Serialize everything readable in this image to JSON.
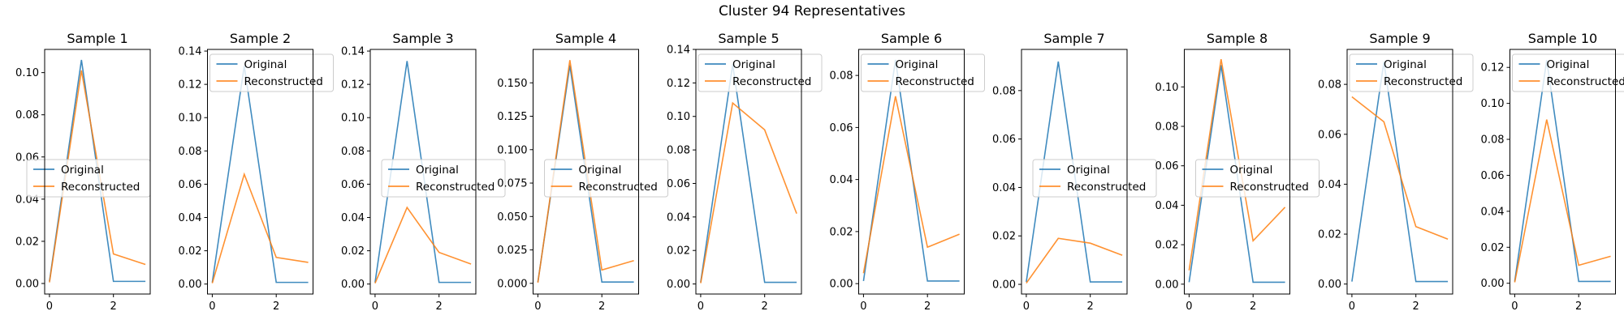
{
  "figure_title": "Cluster 94 Representatives",
  "colors": {
    "original": "#1f77b4",
    "reconstructed": "#ff7f0e"
  },
  "chart_data": [
    {
      "type": "line",
      "title": "Sample 1",
      "legend_position": "center-left",
      "x": [
        0,
        1,
        2,
        3
      ],
      "xlim": [
        -0.15,
        3.15
      ],
      "ylim": [
        -0.005,
        0.111
      ],
      "x_ticks": [
        0,
        2
      ],
      "x_tick_labels": [
        "0",
        "2"
      ],
      "y_ticks": [
        0,
        0.02,
        0.04,
        0.06,
        0.08,
        0.1
      ],
      "y_tick_labels": [
        "0.00",
        "0.02",
        "0.04",
        "0.06",
        "0.08",
        "0.10"
      ],
      "series": [
        {
          "name": "Original",
          "values": [
            0.001,
            0.106,
            0.001,
            0.001
          ]
        },
        {
          "name": "Reconstructed",
          "values": [
            0.0005,
            0.101,
            0.014,
            0.009
          ]
        }
      ]
    },
    {
      "type": "line",
      "title": "Sample 2",
      "legend_position": "top",
      "x": [
        0,
        1,
        2,
        3
      ],
      "xlim": [
        -0.15,
        3.15
      ],
      "ylim": [
        -0.006,
        0.141
      ],
      "x_ticks": [
        0,
        2
      ],
      "x_tick_labels": [
        "0",
        "2"
      ],
      "y_ticks": [
        0,
        0.02,
        0.04,
        0.06,
        0.08,
        0.1,
        0.12,
        0.14
      ],
      "y_tick_labels": [
        "0.00",
        "0.02",
        "0.04",
        "0.06",
        "0.08",
        "0.10",
        "0.12",
        "0.14"
      ],
      "series": [
        {
          "name": "Original",
          "values": [
            0.001,
            0.131,
            0.001,
            0.001
          ]
        },
        {
          "name": "Reconstructed",
          "values": [
            0.0005,
            0.066,
            0.016,
            0.013
          ]
        }
      ]
    },
    {
      "type": "line",
      "title": "Sample 3",
      "legend_position": "center",
      "x": [
        0,
        1,
        2,
        3
      ],
      "xlim": [
        -0.15,
        3.15
      ],
      "ylim": [
        -0.006,
        0.141
      ],
      "x_ticks": [
        0,
        2
      ],
      "x_tick_labels": [
        "0",
        "2"
      ],
      "y_ticks": [
        0,
        0.02,
        0.04,
        0.06,
        0.08,
        0.1,
        0.12,
        0.14
      ],
      "y_tick_labels": [
        "0.00",
        "0.02",
        "0.04",
        "0.06",
        "0.08",
        "0.10",
        "0.12",
        "0.14"
      ],
      "series": [
        {
          "name": "Original",
          "values": [
            0.001,
            0.134,
            0.001,
            0.001
          ]
        },
        {
          "name": "Reconstructed",
          "values": [
            0.0005,
            0.046,
            0.019,
            0.012
          ]
        }
      ]
    },
    {
      "type": "line",
      "title": "Sample 4",
      "legend_position": "center",
      "x": [
        0,
        1,
        2,
        3
      ],
      "xlim": [
        -0.15,
        3.15
      ],
      "ylim": [
        -0.008,
        0.175
      ],
      "x_ticks": [
        0,
        2
      ],
      "x_tick_labels": [
        "0",
        "2"
      ],
      "y_ticks": [
        0,
        0.025,
        0.05,
        0.075,
        0.1,
        0.125,
        0.15
      ],
      "y_tick_labels": [
        "0.000",
        "0.025",
        "0.050",
        "0.075",
        "0.100",
        "0.125",
        "0.150"
      ],
      "series": [
        {
          "name": "Original",
          "values": [
            0.001,
            0.163,
            0.001,
            0.001
          ]
        },
        {
          "name": "Reconstructed",
          "values": [
            0.0005,
            0.167,
            0.01,
            0.017
          ]
        }
      ]
    },
    {
      "type": "line",
      "title": "Sample 5",
      "legend_position": "top",
      "x": [
        0,
        1,
        2,
        3
      ],
      "xlim": [
        -0.15,
        3.15
      ],
      "ylim": [
        -0.006,
        0.14
      ],
      "x_ticks": [
        0,
        2
      ],
      "x_tick_labels": [
        "0",
        "2"
      ],
      "y_ticks": [
        0,
        0.02,
        0.04,
        0.06,
        0.08,
        0.1,
        0.12,
        0.14
      ],
      "y_tick_labels": [
        "0.00",
        "0.02",
        "0.04",
        "0.06",
        "0.08",
        "0.10",
        "0.12",
        "0.14"
      ],
      "series": [
        {
          "name": "Original",
          "values": [
            0.001,
            0.131,
            0.001,
            0.001
          ]
        },
        {
          "name": "Reconstructed",
          "values": [
            0.0005,
            0.108,
            0.092,
            0.042
          ]
        }
      ]
    },
    {
      "type": "line",
      "title": "Sample 6",
      "legend_position": "top",
      "x": [
        0,
        1,
        2,
        3
      ],
      "xlim": [
        -0.15,
        3.15
      ],
      "ylim": [
        -0.004,
        0.09
      ],
      "x_ticks": [
        0,
        2
      ],
      "x_tick_labels": [
        "0",
        "2"
      ],
      "y_ticks": [
        0,
        0.02,
        0.04,
        0.06,
        0.08
      ],
      "y_tick_labels": [
        "0.00",
        "0.02",
        "0.04",
        "0.06",
        "0.08"
      ],
      "series": [
        {
          "name": "Original",
          "values": [
            0.001,
            0.086,
            0.001,
            0.001
          ]
        },
        {
          "name": "Reconstructed",
          "values": [
            0.004,
            0.072,
            0.014,
            0.019
          ]
        }
      ]
    },
    {
      "type": "line",
      "title": "Sample 7",
      "legend_position": "center",
      "x": [
        0,
        1,
        2,
        3
      ],
      "xlim": [
        -0.15,
        3.15
      ],
      "ylim": [
        -0.004,
        0.097
      ],
      "x_ticks": [
        0,
        2
      ],
      "x_tick_labels": [
        "0",
        "2"
      ],
      "y_ticks": [
        0,
        0.02,
        0.04,
        0.06,
        0.08
      ],
      "y_tick_labels": [
        "0.00",
        "0.02",
        "0.04",
        "0.06",
        "0.08"
      ],
      "series": [
        {
          "name": "Original",
          "values": [
            0.001,
            0.092,
            0.001,
            0.001
          ]
        },
        {
          "name": "Reconstructed",
          "values": [
            0.0005,
            0.019,
            0.017,
            0.012
          ]
        }
      ]
    },
    {
      "type": "line",
      "title": "Sample 8",
      "legend_position": "center",
      "x": [
        0,
        1,
        2,
        3
      ],
      "xlim": [
        -0.15,
        3.15
      ],
      "ylim": [
        -0.005,
        0.119
      ],
      "x_ticks": [
        0,
        2
      ],
      "x_tick_labels": [
        "0",
        "2"
      ],
      "y_ticks": [
        0,
        0.02,
        0.04,
        0.06,
        0.08,
        0.1
      ],
      "y_tick_labels": [
        "0.00",
        "0.02",
        "0.04",
        "0.06",
        "0.08",
        "0.10"
      ],
      "series": [
        {
          "name": "Original",
          "values": [
            0.001,
            0.111,
            0.001,
            0.001
          ]
        },
        {
          "name": "Reconstructed",
          "values": [
            0.007,
            0.114,
            0.022,
            0.039
          ]
        }
      ]
    },
    {
      "type": "line",
      "title": "Sample 9",
      "legend_position": "top",
      "x": [
        0,
        1,
        2,
        3
      ],
      "xlim": [
        -0.15,
        3.15
      ],
      "ylim": [
        -0.004,
        0.094
      ],
      "x_ticks": [
        0,
        2
      ],
      "x_tick_labels": [
        "0",
        "2"
      ],
      "y_ticks": [
        0,
        0.02,
        0.04,
        0.06,
        0.08
      ],
      "y_tick_labels": [
        "0.00",
        "0.02",
        "0.04",
        "0.06",
        "0.08"
      ],
      "series": [
        {
          "name": "Original",
          "values": [
            0.001,
            0.089,
            0.001,
            0.001
          ]
        },
        {
          "name": "Reconstructed",
          "values": [
            0.075,
            0.065,
            0.023,
            0.018
          ]
        }
      ]
    },
    {
      "type": "line",
      "title": "Sample 10",
      "legend_position": "top",
      "x": [
        0,
        1,
        2,
        3
      ],
      "xlim": [
        -0.15,
        3.15
      ],
      "ylim": [
        -0.006,
        0.13
      ],
      "x_ticks": [
        0,
        2
      ],
      "x_tick_labels": [
        "0",
        "2"
      ],
      "y_ticks": [
        0,
        0.02,
        0.04,
        0.06,
        0.08,
        0.1,
        0.12
      ],
      "y_tick_labels": [
        "0.00",
        "0.02",
        "0.04",
        "0.06",
        "0.08",
        "0.10",
        "0.12"
      ],
      "series": [
        {
          "name": "Original",
          "values": [
            0.001,
            0.124,
            0.001,
            0.001
          ]
        },
        {
          "name": "Reconstructed",
          "values": [
            0.0005,
            0.091,
            0.01,
            0.015
          ]
        }
      ]
    }
  ]
}
